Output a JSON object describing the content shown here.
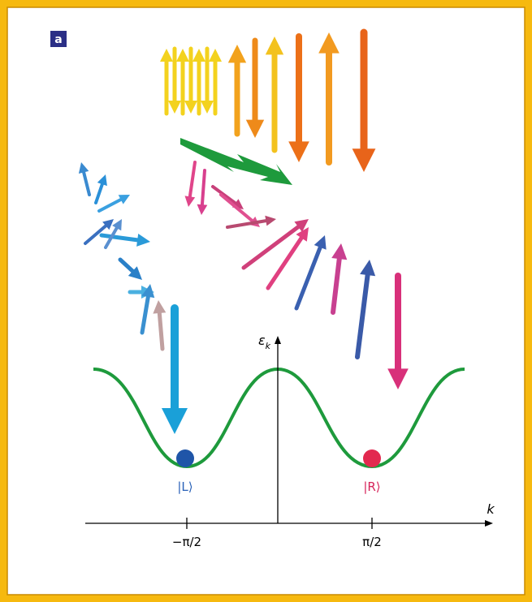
{
  "panel_label": "a",
  "axes": {
    "y_label": "ε",
    "y_label_sub": "k",
    "x_label": "k"
  },
  "ticks": [
    "−π/2",
    "π/2"
  ],
  "states": {
    "left": "|L⟩",
    "right": "|R⟩"
  }
}
